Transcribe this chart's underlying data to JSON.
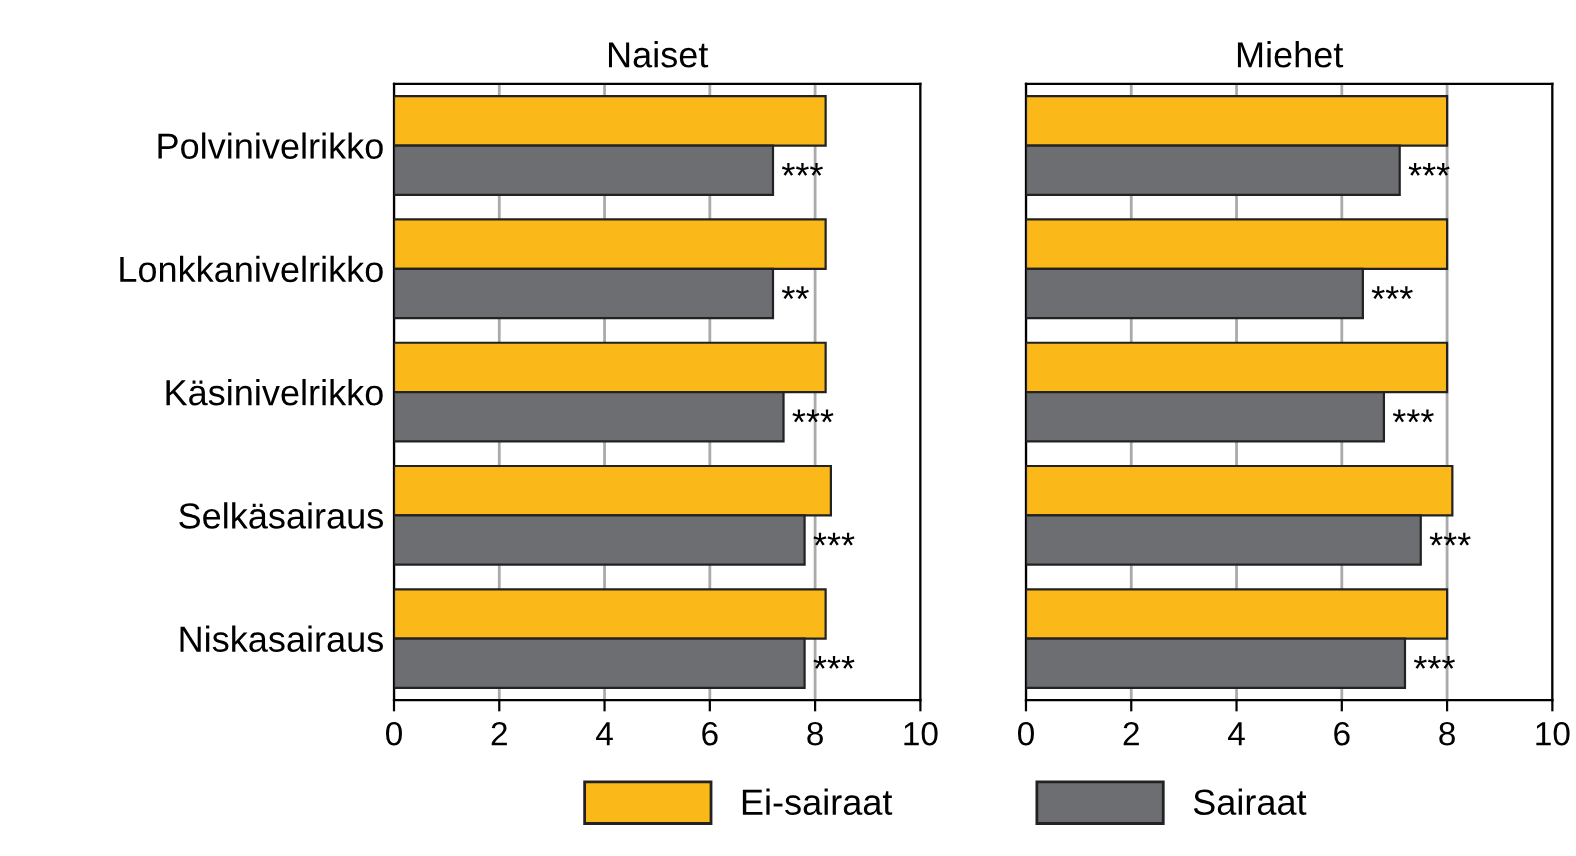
{
  "chart_data": [
    {
      "type": "bar",
      "orientation": "horizontal",
      "title": "Naiset",
      "categories": [
        "Polvinivelrikko",
        "Lonkkanivelrikko",
        "Käsinivelrikko",
        "Selkäsairaus",
        "Niskasairaus"
      ],
      "series": [
        {
          "name": "Ei-sairaat",
          "color": "#fbb819",
          "values": [
            8.2,
            8.2,
            8.2,
            8.3,
            8.2
          ]
        },
        {
          "name": "Sairaat",
          "color": "#6d6e71",
          "values": [
            7.2,
            7.2,
            7.4,
            7.8,
            7.8
          ]
        }
      ],
      "xlim": [
        0,
        10
      ],
      "xticks": [
        0,
        2,
        4,
        6,
        8,
        10
      ],
      "grid": "x",
      "legend": "bottom",
      "annotations": [
        {
          "text": "***",
          "x": 7.2,
          "y": "Polvinivelrikko"
        },
        {
          "text": "**",
          "x": 7.2,
          "y": "Lonkkanivelrikko"
        },
        {
          "text": "***",
          "x": 7.4,
          "y": "Käsinivelrikko"
        },
        {
          "text": "***",
          "x": 7.8,
          "y": "Selkäsairaus"
        },
        {
          "text": "***",
          "x": 7.8,
          "y": "Niskasairaus"
        }
      ]
    },
    {
      "type": "bar",
      "orientation": "horizontal",
      "title": "Miehet",
      "categories": [
        "Polvinivelrikko",
        "Lonkkanivelrikko",
        "Käsinivelrikko",
        "Selkäsairaus",
        "Niskasairaus"
      ],
      "series": [
        {
          "color": "#fbb819",
          "values": [
            8.0,
            8.0,
            8.0,
            8.1,
            8.0
          ]
        },
        {
          "color": "#6d6e71",
          "values": [
            7.1,
            6.4,
            6.8,
            7.5,
            7.2
          ]
        }
      ],
      "xlim": [
        0,
        10
      ],
      "xticks": [
        0,
        2,
        4,
        6,
        8,
        10
      ],
      "grid": "x",
      "tick_labels": "x",
      "annotations": [
        {
          "text": "***",
          "x": 7.1,
          "y": "Polvinivelrikko"
        },
        {
          "text": "***",
          "x": 6.4,
          "y": "Lonkkanivelrikko"
        },
        {
          "text": "***",
          "x": 6.8,
          "y": "Käsinivelrikko"
        },
        {
          "text": "***",
          "x": 7.5,
          "y": "Selkäsairaus"
        },
        {
          "text": "***",
          "x": 7.2,
          "y": "Niskasairaus"
        }
      ]
    }
  ]
}
